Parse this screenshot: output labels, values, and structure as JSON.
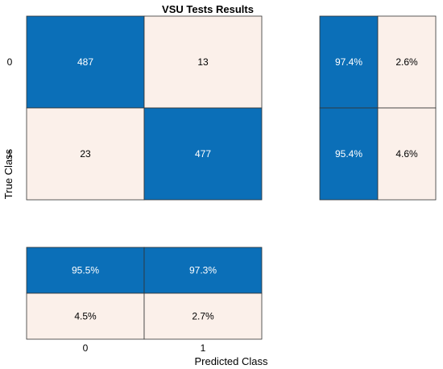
{
  "chart_data": {
    "type": "heatmap",
    "title": "VSU Tests Results",
    "xlabel": "Predicted Class",
    "ylabel": "True Class",
    "classes": [
      "0",
      "1"
    ],
    "confusion_matrix": [
      [
        487,
        13
      ],
      [
        23,
        477
      ]
    ],
    "row_summary": [
      [
        "97.4%",
        "2.6%"
      ],
      [
        "95.4%",
        "4.6%"
      ]
    ],
    "column_summary": [
      [
        "95.5%",
        "97.3%"
      ],
      [
        "4.5%",
        "2.7%"
      ]
    ],
    "colors": {
      "high": "#0b6fb8",
      "low": "#fbf0ea",
      "high_text": "#ffffff",
      "low_text": "#000000",
      "grid": "#333333"
    }
  }
}
